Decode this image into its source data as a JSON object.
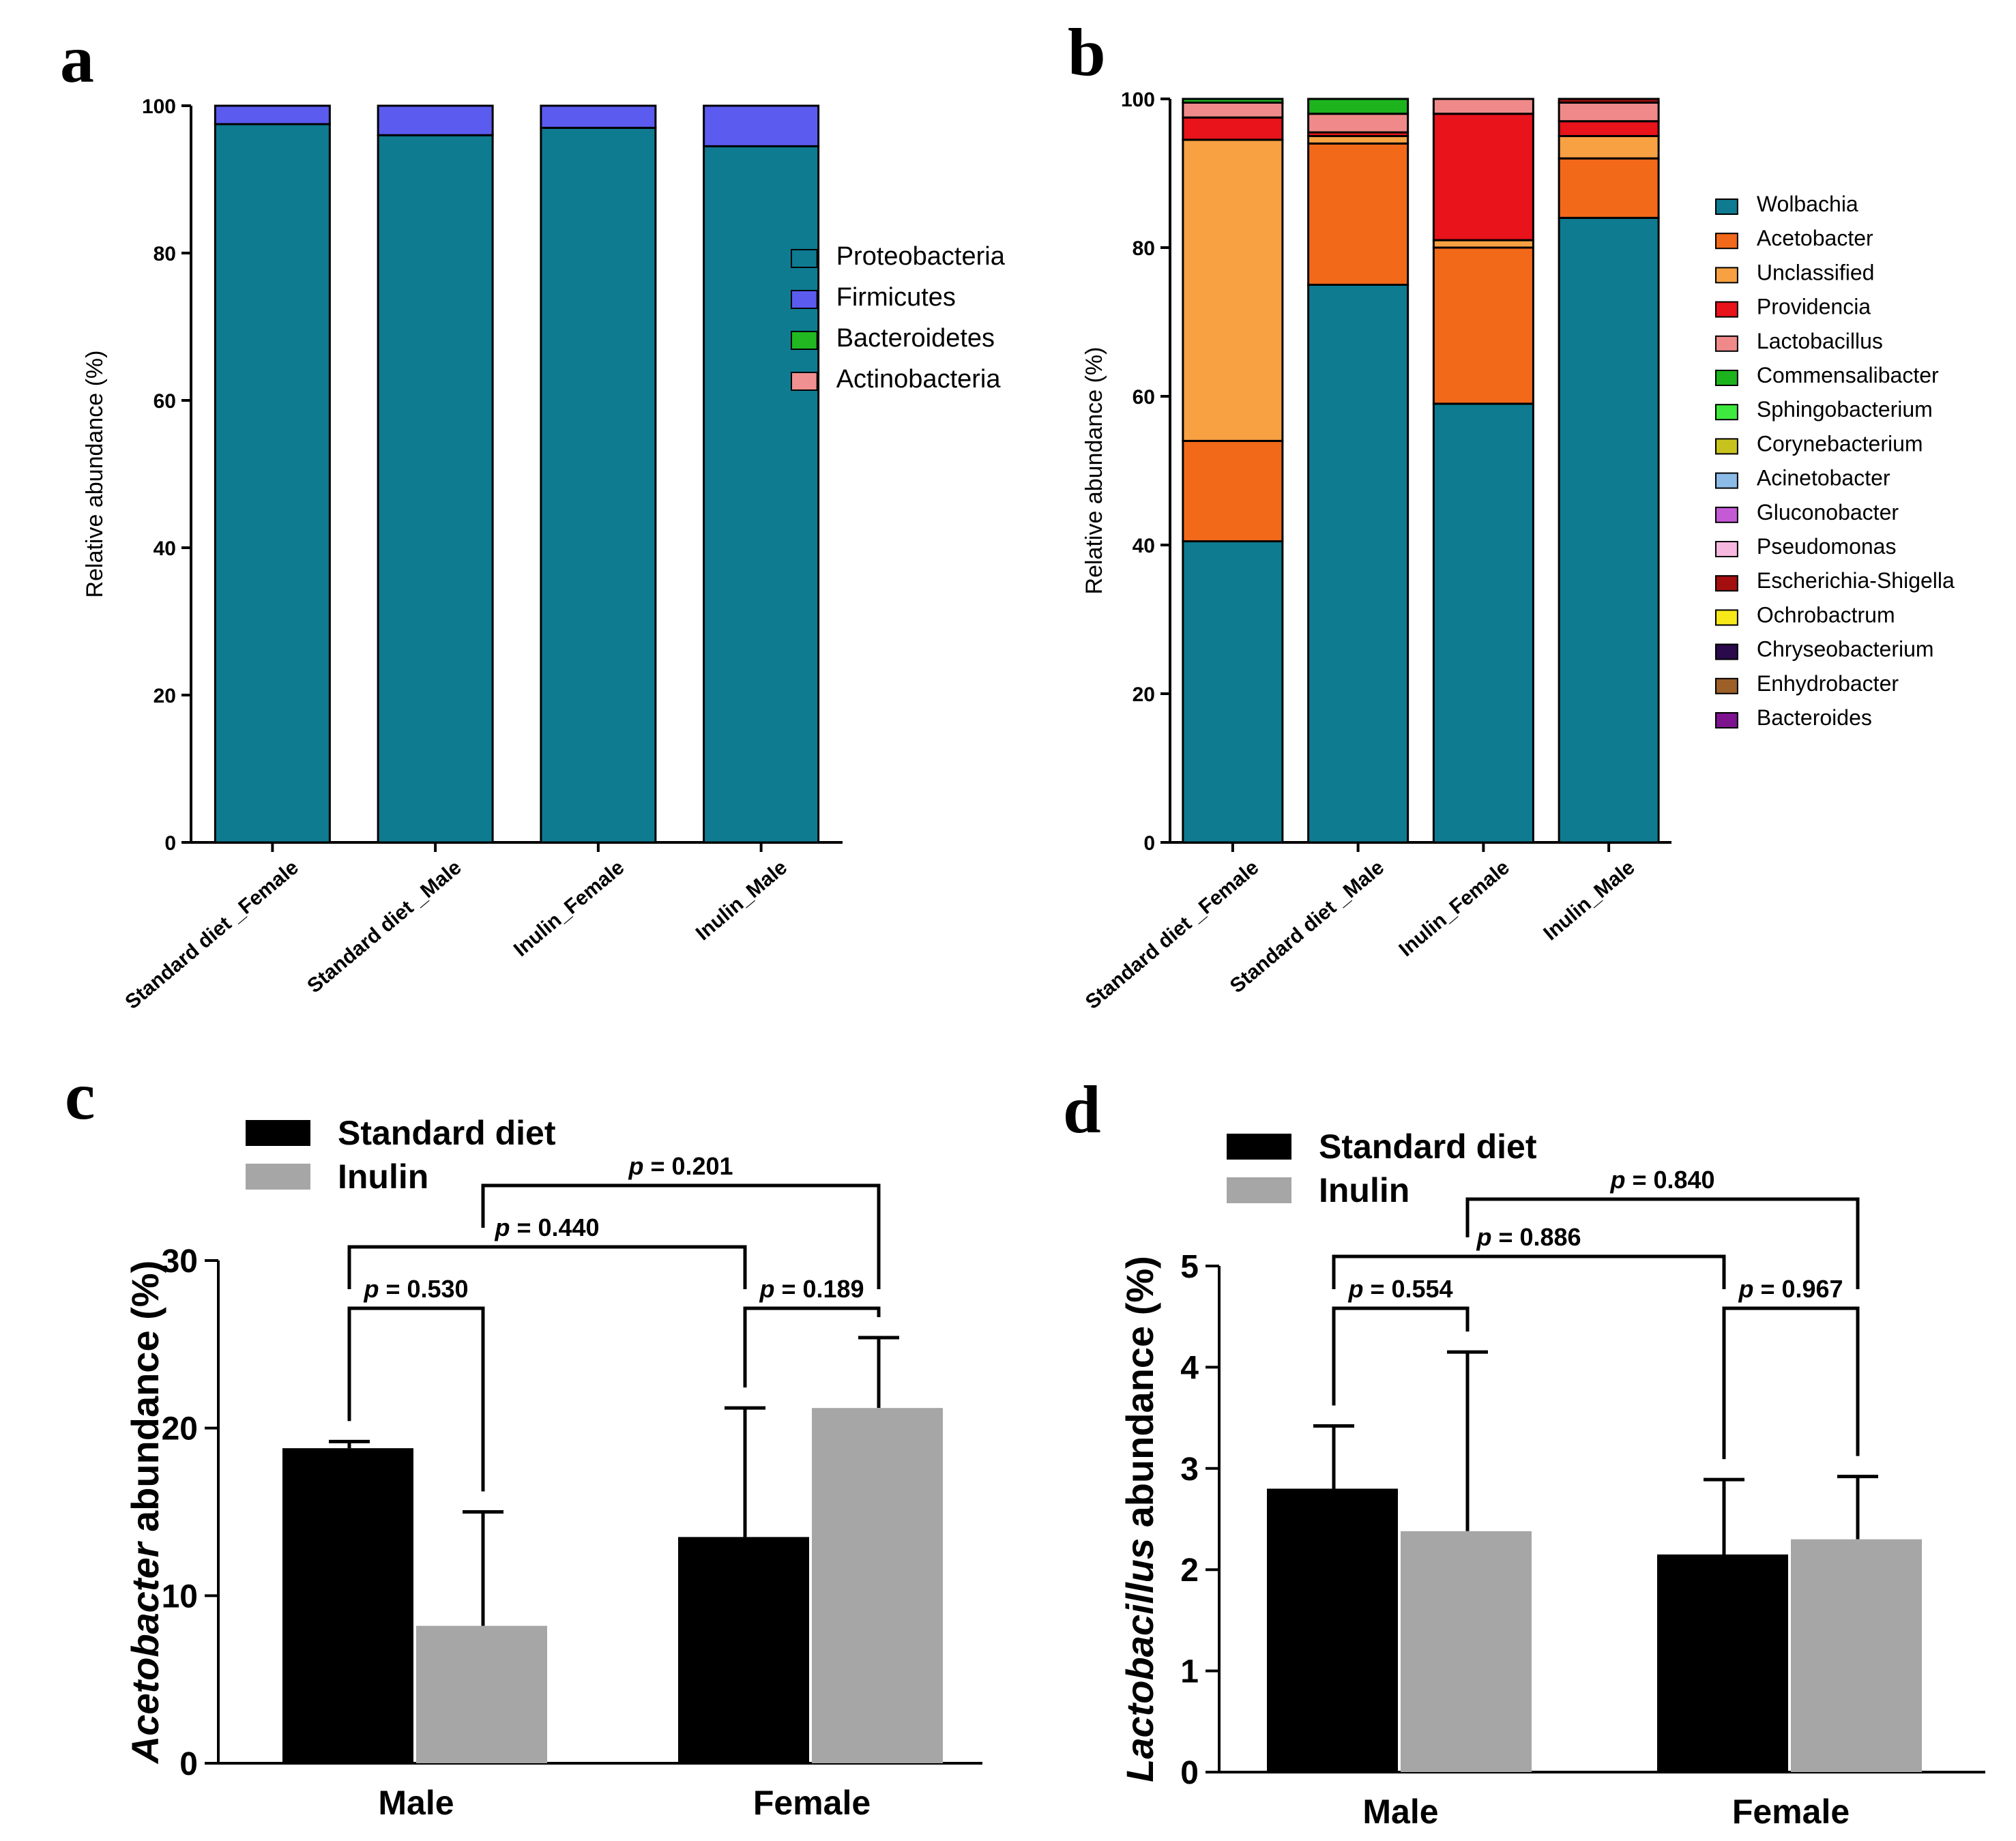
{
  "panels": {
    "a": "a",
    "b": "b",
    "c": "c",
    "d": "d"
  },
  "chart_data": [
    {
      "id": "a",
      "type": "bar",
      "stacked": true,
      "title": "",
      "xlabel": "",
      "ylabel": "Relative abundance (%)",
      "ylim": [
        0,
        100
      ],
      "yticks": [
        "0",
        "20",
        "40",
        "60",
        "80",
        "100"
      ],
      "categories": [
        "Standard diet _Female",
        "Standard diet _Male",
        "Inulin_Female",
        "Inulin_Male"
      ],
      "series": [
        {
          "name": "Proteobacteria",
          "color": "#0e7b91",
          "values": [
            97.5,
            96.0,
            97.0,
            94.5
          ]
        },
        {
          "name": "Firmicutes",
          "color": "#5b5bf0",
          "values": [
            2.5,
            4.0,
            3.0,
            5.5
          ]
        },
        {
          "name": "Bacteroidetes",
          "color": "#22b822",
          "values": [
            0,
            0,
            0,
            0
          ]
        },
        {
          "name": "Actinobacteria",
          "color": "#f09090",
          "values": [
            0,
            0,
            0,
            0
          ]
        }
      ],
      "legend_position": "right"
    },
    {
      "id": "b",
      "type": "bar",
      "stacked": true,
      "title": "",
      "xlabel": "",
      "ylabel": "Relative abundance (%)",
      "ylim": [
        0,
        100
      ],
      "yticks": [
        "0",
        "20",
        "40",
        "60",
        "80",
        "100"
      ],
      "categories": [
        "Standard diet _Female",
        "Standard diet _Male",
        "Inulin_Female",
        "Inulin_Male"
      ],
      "series": [
        {
          "name": "Wolbachia",
          "color": "#0e7b91",
          "values": [
            40.5,
            75.0,
            59.0,
            84.0
          ]
        },
        {
          "name": "Acetobacter",
          "color": "#f2691a",
          "values": [
            13.5,
            19.0,
            21.0,
            8.0
          ]
        },
        {
          "name": "Unclassified",
          "color": "#f7a143",
          "values": [
            40.5,
            1.0,
            1.0,
            3.0
          ]
        },
        {
          "name": "Providencia",
          "color": "#e8131b",
          "values": [
            3.0,
            0.5,
            17.0,
            2.0
          ]
        },
        {
          "name": "Lactobacillus",
          "color": "#f08a8a",
          "values": [
            2.0,
            2.5,
            2.0,
            2.5
          ]
        },
        {
          "name": "Commensalibacter",
          "color": "#1db31d",
          "values": [
            0.5,
            2.0,
            0,
            0
          ]
        },
        {
          "name": "Sphingobacterium",
          "color": "#3ee83e",
          "values": [
            0,
            0,
            0,
            0
          ]
        },
        {
          "name": "Corynebacterium",
          "color": "#c8c21e",
          "values": [
            0,
            0,
            0,
            0
          ]
        },
        {
          "name": "Acinetobacter",
          "color": "#8cbbe8",
          "values": [
            0,
            0,
            0,
            0
          ]
        },
        {
          "name": "Gluconobacter",
          "color": "#c45ad6",
          "values": [
            0,
            0,
            0,
            0
          ]
        },
        {
          "name": "Pseudomonas",
          "color": "#f7b8e0",
          "values": [
            0,
            0,
            0,
            0
          ]
        },
        {
          "name": "Escherichia-Shigella",
          "color": "#a30f0f",
          "values": [
            0,
            0,
            0,
            0.5
          ]
        },
        {
          "name": "Ochrobactrum",
          "color": "#f7e81a",
          "values": [
            0,
            0,
            0,
            0
          ]
        },
        {
          "name": "Chryseobacterium",
          "color": "#2a0a4a",
          "values": [
            0,
            0,
            0,
            0
          ]
        },
        {
          "name": "Enhydrobacter",
          "color": "#9c5f28",
          "values": [
            0,
            0,
            0,
            0
          ]
        },
        {
          "name": "Bacteroides",
          "color": "#7d138f",
          "values": [
            0,
            0,
            0,
            0
          ]
        }
      ],
      "legend_position": "right"
    },
    {
      "id": "c",
      "type": "bar",
      "title": "",
      "xlabel": "",
      "ylabel_italic": "Acetobacter",
      "ylabel_rest": " abundance (%)",
      "ylim": [
        0,
        30
      ],
      "yticks": [
        "0",
        "10",
        "20",
        "30"
      ],
      "categories": [
        "Male",
        "Female"
      ],
      "series": [
        {
          "name": "Standard diet",
          "color": "#000000",
          "values": [
            18.8,
            13.5
          ],
          "errors": [
            0.4,
            7.7
          ]
        },
        {
          "name": "Inulin",
          "color": "#a6a6a6",
          "values": [
            8.2,
            21.2
          ],
          "errors": [
            6.8,
            4.2
          ]
        }
      ],
      "comparisons": [
        {
          "label": "p = 0.530",
          "from": [
            0,
            0
          ],
          "to": [
            0,
            1
          ]
        },
        {
          "label": "p = 0.189",
          "from": [
            1,
            0
          ],
          "to": [
            1,
            1
          ]
        },
        {
          "label": "p = 0.440",
          "from": [
            0,
            0
          ],
          "to": [
            1,
            0
          ]
        },
        {
          "label": "p = 0.201",
          "from": [
            0,
            1
          ],
          "to": [
            1,
            1
          ]
        }
      ],
      "legend_position": "top-left"
    },
    {
      "id": "d",
      "type": "bar",
      "title": "",
      "xlabel": "",
      "ylabel_italic": "Lactobacillus",
      "ylabel_rest": " abundance (%)",
      "ylim": [
        0,
        5
      ],
      "yticks": [
        "0",
        "1",
        "2",
        "3",
        "4",
        "5"
      ],
      "categories": [
        "Male",
        "Female"
      ],
      "series": [
        {
          "name": "Standard diet",
          "color": "#000000",
          "values": [
            2.8,
            2.15
          ],
          "errors": [
            0.62,
            0.74
          ]
        },
        {
          "name": "Inulin",
          "color": "#a6a6a6",
          "values": [
            2.38,
            2.3
          ],
          "errors": [
            1.77,
            0.62
          ]
        }
      ],
      "comparisons": [
        {
          "label": "p = 0.554",
          "from": [
            0,
            0
          ],
          "to": [
            0,
            1
          ]
        },
        {
          "label": "p = 0.967",
          "from": [
            1,
            0
          ],
          "to": [
            1,
            1
          ]
        },
        {
          "label": "p = 0.886",
          "from": [
            0,
            0
          ],
          "to": [
            1,
            0
          ]
        },
        {
          "label": "p = 0.840",
          "from": [
            0,
            1
          ],
          "to": [
            1,
            1
          ]
        }
      ],
      "legend_position": "top-left"
    }
  ]
}
